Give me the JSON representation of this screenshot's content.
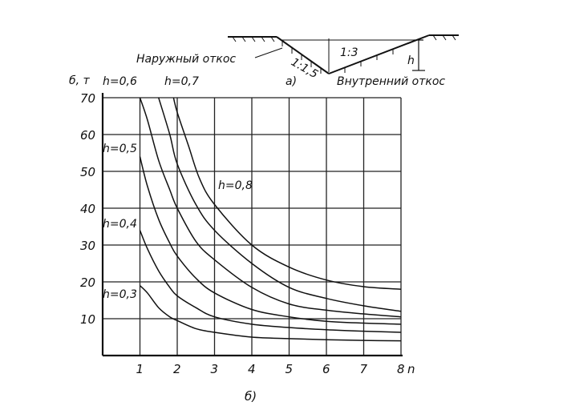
{
  "chart_data": {
    "type": "line",
    "ylabel": "б, т",
    "xlabel": "n",
    "caption": "б)",
    "xlim": [
      0,
      8
    ],
    "ylim": [
      0,
      70
    ],
    "xticks": [
      1,
      2,
      3,
      4,
      5,
      6,
      7,
      8
    ],
    "yticks": [
      10,
      20,
      30,
      40,
      50,
      60,
      70
    ],
    "grid": true,
    "series": [
      {
        "name": "h=0,3",
        "label": "h=0,3",
        "x": [
          1.0,
          1.2,
          1.5,
          1.8,
          2.0,
          2.5,
          3.0,
          4.0,
          5.0,
          6.0,
          7.0,
          8.0
        ],
        "y": [
          19,
          17,
          13,
          10.5,
          9.5,
          7.3,
          6.3,
          5,
          4.6,
          4.3,
          4.1,
          4
        ]
      },
      {
        "name": "h=0,4",
        "label": "h=0,4",
        "x": [
          1.0,
          1.2,
          1.5,
          1.8,
          2.0,
          2.5,
          3.0,
          4.0,
          5.0,
          6.0,
          7.0,
          8.0
        ],
        "y": [
          34,
          29,
          23,
          18.5,
          16.2,
          13,
          10.5,
          8.5,
          7.6,
          7,
          6.6,
          6.3
        ]
      },
      {
        "name": "h=0,5",
        "label": "h=0,5",
        "x": [
          1.0,
          1.2,
          1.5,
          1.8,
          2.0,
          2.5,
          3.0,
          4.0,
          5.0,
          6.0,
          7.0,
          8.0
        ],
        "y": [
          54,
          46,
          37,
          30.5,
          27,
          21,
          17,
          12.5,
          10.5,
          9.3,
          8.8,
          8.5
        ]
      },
      {
        "name": "h=0,6",
        "label": "h=0,6",
        "x": [
          1.0,
          1.2,
          1.5,
          1.8,
          2.0,
          2.5,
          3.0,
          4.0,
          5.0,
          6.0,
          7.0,
          8.0
        ],
        "y": [
          70,
          64,
          53,
          45,
          40,
          31,
          26,
          18.5,
          14,
          12.3,
          11.3,
          10.5
        ]
      },
      {
        "name": "h=0,7",
        "label": "h=0,7",
        "x": [
          1.5,
          1.8,
          2.0,
          2.5,
          3.0,
          4.0,
          5.0,
          6.0,
          7.0,
          8.0
        ],
        "y": [
          70,
          60,
          52,
          41,
          34,
          25,
          18.5,
          15.5,
          13.5,
          12
        ]
      },
      {
        "name": "h=0,8",
        "label": "h=0,8",
        "x": [
          1.9,
          2.0,
          2.3,
          2.6,
          3.0,
          4.0,
          5.0,
          6.0,
          7.0,
          8.0
        ],
        "y": [
          70,
          66,
          57,
          48,
          41,
          30,
          24,
          20.5,
          18.7,
          18
        ]
      }
    ]
  },
  "labels": {
    "series_tags": [
      "h=0,3",
      "h=0,4",
      "h=0,5",
      "h=0,6",
      "h=0,7",
      "h=0,8"
    ]
  },
  "inset": {
    "caption": "а)",
    "outer_slope_label": "Наружный откос",
    "inner_slope_label": "Внутренний откос",
    "left_ratio": "1:1,5",
    "right_ratio": "1:3",
    "depth_label": "h"
  }
}
